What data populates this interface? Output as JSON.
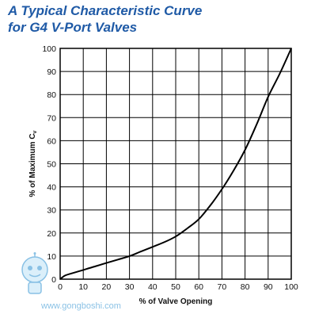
{
  "header": {
    "title_line1": "A Typical Characteristic Curve",
    "title_line2": "for G4 V-Port Valves"
  },
  "colors": {
    "title": "#1f5aa6",
    "grid": "#000000",
    "curve": "#000000",
    "watermark": "#2a8fd0"
  },
  "watermark": {
    "url": "www.gongboshi.com"
  },
  "chart_data": {
    "type": "line",
    "title": "A Typical Characteristic Curve for G4 V-Port Valves",
    "xlabel": "% of Valve Opening",
    "ylabel": "% of Maximum Cv",
    "ylabel_main": "% of Maximum C",
    "ylabel_sub": "v",
    "xlim": [
      0,
      100
    ],
    "ylim": [
      0,
      100
    ],
    "xticks": [
      0,
      10,
      20,
      30,
      40,
      50,
      60,
      70,
      80,
      90,
      100
    ],
    "yticks": [
      0,
      10,
      20,
      30,
      40,
      50,
      60,
      70,
      80,
      90,
      100
    ],
    "grid": true,
    "legend": false,
    "series": [
      {
        "x": [
          0,
          2,
          5,
          10,
          15,
          20,
          25,
          30,
          35,
          40,
          45,
          50,
          55,
          60,
          65,
          70,
          75,
          80,
          85,
          90,
          95,
          100
        ],
        "y": [
          0,
          1.5,
          2.5,
          4,
          5.5,
          7,
          8.5,
          10,
          12,
          14,
          16,
          18.5,
          22,
          26,
          32,
          39,
          47,
          56,
          67,
          79,
          89,
          100
        ]
      }
    ]
  }
}
